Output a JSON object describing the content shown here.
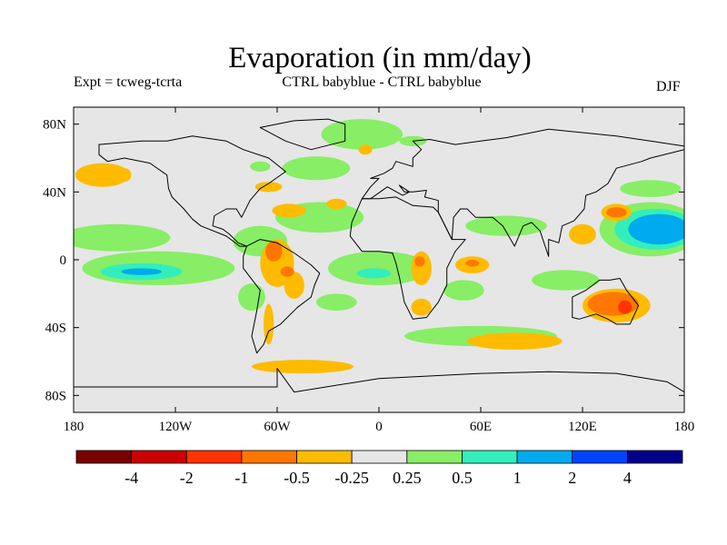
{
  "header": {
    "title": "Evaporation (in mm/day)",
    "expt": "Expt = tcweg-tcrta",
    "comparison": "CTRL babyblue - CTRL babyblue",
    "season": "DJF"
  },
  "chart_data": {
    "type": "filled-contour-map",
    "title": "Evaporation (in mm/day)",
    "projection": "cylindrical-equidistant",
    "xlim": [
      -180,
      180
    ],
    "ylim": [
      -90,
      90
    ],
    "background_color": "#e6e6e6",
    "x_ticks": [
      {
        "value": -180,
        "label": "180"
      },
      {
        "value": -120,
        "label": "120W"
      },
      {
        "value": -60,
        "label": "60W"
      },
      {
        "value": 0,
        "label": "0"
      },
      {
        "value": 60,
        "label": "60E"
      },
      {
        "value": 120,
        "label": "120E"
      },
      {
        "value": 180,
        "label": "180"
      }
    ],
    "y_ticks": [
      {
        "value": 80,
        "label": "80N"
      },
      {
        "value": 40,
        "label": "40N"
      },
      {
        "value": 0,
        "label": "0"
      },
      {
        "value": -40,
        "label": "40S"
      },
      {
        "value": -80,
        "label": "80S"
      }
    ],
    "colorbar": {
      "colors": [
        "#7a0000",
        "#cc0000",
        "#ff3300",
        "#ff7700",
        "#ffbb00",
        "#e6e6e6",
        "#88ee66",
        "#33eebb",
        "#00aaee",
        "#0044ff",
        "#000088"
      ],
      "labels": [
        "-4",
        "-2",
        "-1",
        "-0.5",
        "-0.25",
        "0.25",
        "0.5",
        "1",
        "2",
        "4"
      ]
    },
    "regions": [
      {
        "color": "#33eebb",
        "lon": -10,
        "lat": 74,
        "rx": 12,
        "ry": 6
      },
      {
        "color": "#88ee66",
        "lon": -10,
        "lat": 74,
        "rx": 24,
        "ry": 9
      },
      {
        "color": "#33eebb",
        "lon": -40,
        "lat": 53,
        "rx": 10,
        "ry": 4
      },
      {
        "color": "#88ee66",
        "lon": -37,
        "lat": 54,
        "rx": 20,
        "ry": 7
      },
      {
        "color": "#ffbb00",
        "lon": -65,
        "lat": 43,
        "rx": 8,
        "ry": 3
      },
      {
        "color": "#ffbb00",
        "lon": -8,
        "lat": 65,
        "rx": 4,
        "ry": 3
      },
      {
        "color": "#ffbb00",
        "lon": -163,
        "lat": 50,
        "rx": 16,
        "ry": 7
      },
      {
        "color": "#88ee66",
        "lon": -70,
        "lat": 55,
        "rx": 6,
        "ry": 3
      },
      {
        "color": "#ffbb00",
        "lon": -150,
        "lat": 50,
        "rx": 4,
        "ry": 4
      },
      {
        "color": "#88ee66",
        "lon": -155,
        "lat": 13,
        "rx": 32,
        "ry": 8
      },
      {
        "color": "#88ee66",
        "lon": -70,
        "lat": 11,
        "rx": 16,
        "ry": 9
      },
      {
        "color": "#88ee66",
        "lon": -35,
        "lat": 25,
        "rx": 26,
        "ry": 9
      },
      {
        "color": "#ffbb00",
        "lon": -53,
        "lat": 29,
        "rx": 10,
        "ry": 4
      },
      {
        "color": "#ffbb00",
        "lon": -25,
        "lat": 33,
        "rx": 6,
        "ry": 3
      },
      {
        "color": "#88ee66",
        "lon": -130,
        "lat": -5,
        "rx": 45,
        "ry": 10
      },
      {
        "color": "#33eebb",
        "lon": -140,
        "lat": -7,
        "rx": 24,
        "ry": 5
      },
      {
        "color": "#00aaee",
        "lon": -140,
        "lat": -7,
        "rx": 12,
        "ry": 2
      },
      {
        "color": "#88ee66",
        "lon": -75,
        "lat": -22,
        "rx": 8,
        "ry": 8
      },
      {
        "color": "#ffbb00",
        "lon": -60,
        "lat": -2,
        "rx": 10,
        "ry": 14
      },
      {
        "color": "#ffbb00",
        "lon": -50,
        "lat": -15,
        "rx": 6,
        "ry": 8
      },
      {
        "color": "#ff7700",
        "lon": -62,
        "lat": 5,
        "rx": 5,
        "ry": 6
      },
      {
        "color": "#ff7700",
        "lon": -54,
        "lat": -7,
        "rx": 4,
        "ry": 3
      },
      {
        "color": "#ffbb00",
        "lon": -65,
        "lat": -38,
        "rx": 3,
        "ry": 12
      },
      {
        "color": "#88ee66",
        "lon": -25,
        "lat": -25,
        "rx": 12,
        "ry": 5
      },
      {
        "color": "#88ee66",
        "lon": 0,
        "lat": -5,
        "rx": 30,
        "ry": 10
      },
      {
        "color": "#33eebb",
        "lon": -3,
        "lat": -8,
        "rx": 10,
        "ry": 3
      },
      {
        "color": "#ffbb00",
        "lon": 25,
        "lat": -5,
        "rx": 6,
        "ry": 10
      },
      {
        "color": "#ff7700",
        "lon": 24,
        "lat": -1,
        "rx": 3,
        "ry": 3
      },
      {
        "color": "#ffbb00",
        "lon": 25,
        "lat": -28,
        "rx": 6,
        "ry": 5
      },
      {
        "color": "#ffbb00",
        "lon": 55,
        "lat": -3,
        "rx": 10,
        "ry": 5
      },
      {
        "color": "#ff7700",
        "lon": 55,
        "lat": -2,
        "rx": 4,
        "ry": 2
      },
      {
        "color": "#88ee66",
        "lon": 50,
        "lat": -18,
        "rx": 12,
        "ry": 6
      },
      {
        "color": "#88ee66",
        "lon": 60,
        "lat": -45,
        "rx": 45,
        "ry": 6
      },
      {
        "color": "#ffbb00",
        "lon": -45,
        "lat": -63,
        "rx": 30,
        "ry": 4
      },
      {
        "color": "#ffbb00",
        "lon": 80,
        "lat": -48,
        "rx": 28,
        "ry": 5
      },
      {
        "color": "#ffbb00",
        "lon": 140,
        "lat": -27,
        "rx": 20,
        "ry": 10
      },
      {
        "color": "#ff7700",
        "lon": 138,
        "lat": -26,
        "rx": 15,
        "ry": 7
      },
      {
        "color": "#ff3300",
        "lon": 145,
        "lat": -28,
        "rx": 4,
        "ry": 4
      },
      {
        "color": "#88ee66",
        "lon": 110,
        "lat": -12,
        "rx": 20,
        "ry": 6
      },
      {
        "color": "#88ee66",
        "lon": 75,
        "lat": 20,
        "rx": 24,
        "ry": 6
      },
      {
        "color": "#ffbb00",
        "lon": 120,
        "lat": 15,
        "rx": 8,
        "ry": 6
      },
      {
        "color": "#88ee66",
        "lon": 160,
        "lat": 18,
        "rx": 30,
        "ry": 16
      },
      {
        "color": "#33eebb",
        "lon": 163,
        "lat": 18,
        "rx": 24,
        "ry": 12
      },
      {
        "color": "#00aaee",
        "lon": 165,
        "lat": 18,
        "rx": 18,
        "ry": 9
      },
      {
        "color": "#ffbb00",
        "lon": 140,
        "lat": 28,
        "rx": 9,
        "ry": 5
      },
      {
        "color": "#ff7700",
        "lon": 140,
        "lat": 28,
        "rx": 6,
        "ry": 3
      },
      {
        "color": "#88ee66",
        "lon": 160,
        "lat": 42,
        "rx": 18,
        "ry": 5
      },
      {
        "color": "#88ee66",
        "lon": 20,
        "lat": 70,
        "rx": 8,
        "ry": 3
      }
    ],
    "land": [
      [
        [
          -165,
          68
        ],
        [
          -140,
          70
        ],
        [
          -125,
          70
        ],
        [
          -110,
          73
        ],
        [
          -90,
          70
        ],
        [
          -80,
          65
        ],
        [
          -65,
          60
        ],
        [
          -55,
          52
        ],
        [
          -65,
          45
        ],
        [
          -70,
          42
        ],
        [
          -76,
          35
        ],
        [
          -81,
          25
        ],
        [
          -84,
          30
        ],
        [
          -90,
          30
        ],
        [
          -97,
          26
        ],
        [
          -98,
          20
        ],
        [
          -92,
          18
        ],
        [
          -88,
          15
        ],
        [
          -83,
          10
        ],
        [
          -78,
          8
        ],
        [
          -82,
          8
        ],
        [
          -90,
          14
        ],
        [
          -105,
          20
        ],
        [
          -110,
          24
        ],
        [
          -115,
          30
        ],
        [
          -122,
          37
        ],
        [
          -124,
          42
        ],
        [
          -125,
          50
        ],
        [
          -135,
          57
        ],
        [
          -150,
          60
        ],
        [
          -160,
          58
        ],
        [
          -165,
          62
        ]
      ],
      [
        [
          -50,
          82
        ],
        [
          -30,
          83
        ],
        [
          -20,
          80
        ],
        [
          -20,
          70
        ],
        [
          -40,
          65
        ],
        [
          -55,
          70
        ],
        [
          -70,
          78
        ]
      ],
      [
        [
          -78,
          8
        ],
        [
          -70,
          12
        ],
        [
          -60,
          10
        ],
        [
          -50,
          4
        ],
        [
          -40,
          -3
        ],
        [
          -35,
          -8
        ],
        [
          -38,
          -15
        ],
        [
          -40,
          -22
        ],
        [
          -48,
          -28
        ],
        [
          -58,
          -38
        ],
        [
          -65,
          -42
        ],
        [
          -68,
          -50
        ],
        [
          -72,
          -55
        ],
        [
          -75,
          -45
        ],
        [
          -72,
          -30
        ],
        [
          -70,
          -18
        ],
        [
          -80,
          -5
        ],
        [
          -80,
          2
        ]
      ],
      [
        [
          -10,
          36
        ],
        [
          0,
          36
        ],
        [
          10,
          37
        ],
        [
          20,
          32
        ],
        [
          32,
          31
        ],
        [
          35,
          28
        ],
        [
          43,
          12
        ],
        [
          51,
          12
        ],
        [
          45,
          5
        ],
        [
          40,
          -5
        ],
        [
          40,
          -15
        ],
        [
          35,
          -25
        ],
        [
          28,
          -34
        ],
        [
          20,
          -35
        ],
        [
          15,
          -25
        ],
        [
          12,
          -10
        ],
        [
          10,
          -2
        ],
        [
          8,
          4
        ],
        [
          0,
          5
        ],
        [
          -10,
          5
        ],
        [
          -17,
          14
        ],
        [
          -16,
          22
        ]
      ],
      [
        [
          -10,
          36
        ],
        [
          -5,
          43
        ],
        [
          0,
          48
        ],
        [
          -5,
          48
        ],
        [
          3,
          51
        ],
        [
          8,
          54
        ],
        [
          10,
          58
        ],
        [
          20,
          55
        ],
        [
          20,
          60
        ],
        [
          25,
          65
        ],
        [
          20,
          70
        ],
        [
          30,
          71
        ],
        [
          45,
          68
        ],
        [
          60,
          70
        ],
        [
          75,
          72
        ],
        [
          100,
          77
        ],
        [
          140,
          73
        ],
        [
          160,
          70
        ],
        [
          180,
          67
        ],
        [
          180,
          65
        ],
        [
          160,
          60
        ],
        [
          155,
          58
        ],
        [
          140,
          54
        ],
        [
          135,
          45
        ],
        [
          128,
          40
        ],
        [
          122,
          38
        ],
        [
          121,
          30
        ],
        [
          115,
          23
        ],
        [
          108,
          20
        ],
        [
          106,
          10
        ],
        [
          100,
          12
        ],
        [
          100,
          2
        ],
        [
          98,
          8
        ],
        [
          95,
          17
        ],
        [
          90,
          22
        ],
        [
          85,
          20
        ],
        [
          80,
          8
        ],
        [
          73,
          20
        ],
        [
          67,
          25
        ],
        [
          57,
          25
        ],
        [
          52,
          30
        ],
        [
          48,
          30
        ],
        [
          44,
          25
        ],
        [
          43,
          12
        ],
        [
          35,
          28
        ],
        [
          35,
          35
        ],
        [
          27,
          37
        ],
        [
          28,
          41
        ],
        [
          20,
          40
        ],
        [
          15,
          40
        ],
        [
          12,
          44
        ],
        [
          18,
          40
        ],
        [
          14,
          38
        ],
        [
          5,
          43
        ],
        [
          -5,
          36
        ]
      ],
      [
        [
          114,
          -22
        ],
        [
          114,
          -34
        ],
        [
          118,
          -35
        ],
        [
          128,
          -32
        ],
        [
          135,
          -35
        ],
        [
          140,
          -38
        ],
        [
          148,
          -38
        ],
        [
          153,
          -27
        ],
        [
          146,
          -18
        ],
        [
          142,
          -11
        ],
        [
          136,
          -12
        ],
        [
          130,
          -12
        ],
        [
          122,
          -18
        ]
      ],
      [
        [
          -180,
          -75
        ],
        [
          -140,
          -75
        ],
        [
          -60,
          -75
        ],
        [
          -60,
          -64
        ],
        [
          -50,
          -78
        ],
        [
          0,
          -70
        ],
        [
          60,
          -67
        ],
        [
          100,
          -66
        ],
        [
          140,
          -67
        ],
        [
          170,
          -72
        ],
        [
          180,
          -78
        ],
        [
          180,
          -90
        ],
        [
          -180,
          -90
        ]
      ]
    ]
  }
}
